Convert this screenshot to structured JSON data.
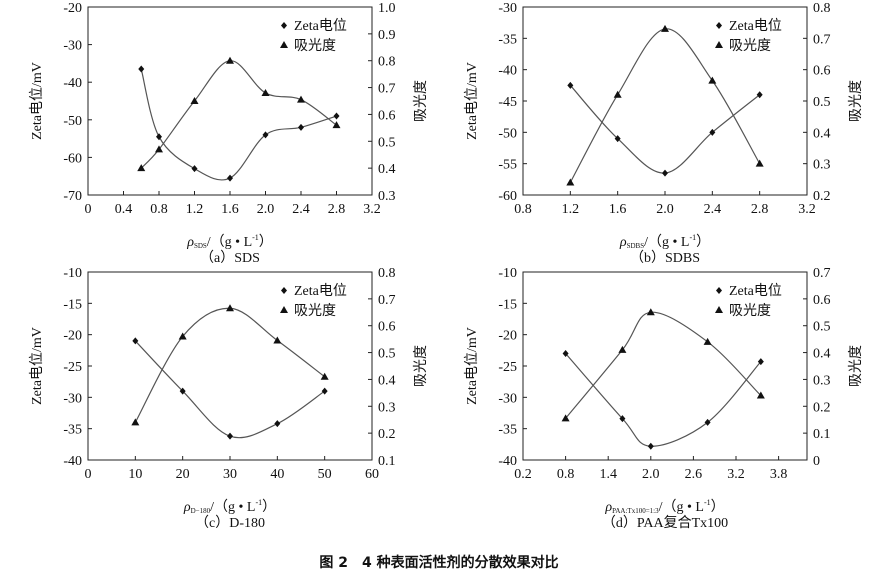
{
  "figure_title": "图 2　4 种表面活性剂的分散效果对比",
  "chart_data": [
    {
      "type": "line",
      "caption": "（a）SDS",
      "xlabel": {
        "symbol": "ρ",
        "subscript": "SDS",
        "unit": "/（g • L",
        "unit_sup": "-1",
        "unit_close": "）"
      },
      "ylabel_left": "Zeta电位/mV",
      "ylabel_right": "吸光度",
      "xlim": [
        0,
        3.2
      ],
      "xticks": [
        "0",
        "0.4",
        "0.8",
        "1.2",
        "1.6",
        "2.0",
        "2.4",
        "2.8",
        "3.2"
      ],
      "ylim_left": [
        -70,
        -20
      ],
      "yticks_left": [
        "-70",
        "-60",
        "-50",
        "-40",
        "-30",
        "-20"
      ],
      "ylim_right": [
        0.3,
        1.0
      ],
      "yticks_right": [
        "0.3",
        "0.4",
        "0.5",
        "0.6",
        "0.7",
        "0.8",
        "0.9",
        "1.0"
      ],
      "legend": "top-right",
      "series": [
        {
          "name": "Zeta电位",
          "axis": "left",
          "marker": "diamond",
          "x": [
            0.6,
            0.8,
            1.2,
            1.6,
            2.0,
            2.4,
            2.8
          ],
          "y": [
            -36.5,
            -54.5,
            -63,
            -65.5,
            -54,
            -52,
            -49
          ]
        },
        {
          "name": "吸光度",
          "axis": "right",
          "marker": "triangle",
          "x": [
            0.6,
            0.8,
            1.2,
            1.6,
            2.0,
            2.4,
            2.8
          ],
          "y": [
            0.4,
            0.47,
            0.65,
            0.8,
            0.68,
            0.655,
            0.56
          ]
        }
      ]
    },
    {
      "type": "line",
      "caption": "（b）SDBS",
      "xlabel": {
        "symbol": "ρ",
        "subscript": "SDBS",
        "unit": "/（g • L",
        "unit_sup": "-1",
        "unit_close": "）"
      },
      "ylabel_left": "Zeta电位/mV",
      "ylabel_right": "吸光度",
      "xlim": [
        0.8,
        3.2
      ],
      "xticks": [
        "0.8",
        "1.2",
        "1.6",
        "2.0",
        "2.4",
        "2.8",
        "3.2"
      ],
      "ylim_left": [
        -60,
        -30
      ],
      "yticks_left": [
        "-60",
        "-55",
        "-50",
        "-45",
        "-40",
        "-35",
        "-30"
      ],
      "ylim_right": [
        0.2,
        0.8
      ],
      "yticks_right": [
        "0.2",
        "0.3",
        "0.4",
        "0.5",
        "0.6",
        "0.7",
        "0.8"
      ],
      "legend": "top-right",
      "series": [
        {
          "name": "Zeta电位",
          "axis": "left",
          "marker": "diamond",
          "x": [
            1.2,
            1.6,
            2.0,
            2.4,
            2.8
          ],
          "y": [
            -42.5,
            -51,
            -56.5,
            -50,
            -44
          ]
        },
        {
          "name": "吸光度",
          "axis": "right",
          "marker": "triangle",
          "x": [
            1.2,
            1.6,
            2.0,
            2.4,
            2.8
          ],
          "y": [
            0.24,
            0.52,
            0.73,
            0.565,
            0.3
          ]
        }
      ]
    },
    {
      "type": "line",
      "caption": "（c）D-180",
      "xlabel": {
        "symbol": "ρ",
        "subscript": "D−180",
        "unit": "/（g • L",
        "unit_sup": "-1",
        "unit_close": "）"
      },
      "ylabel_left": "Zeta电位/mV",
      "ylabel_right": "吸光度",
      "xlim": [
        0,
        60
      ],
      "xticks": [
        "0",
        "10",
        "20",
        "30",
        "40",
        "50",
        "60"
      ],
      "ylim_left": [
        -40,
        -10
      ],
      "yticks_left": [
        "-40",
        "-35",
        "-30",
        "-25",
        "-20",
        "-15",
        "-10"
      ],
      "ylim_right": [
        0.1,
        0.8
      ],
      "yticks_right": [
        "0.1",
        "0.2",
        "0.3",
        "0.4",
        "0.5",
        "0.6",
        "0.7",
        "0.8"
      ],
      "legend": "top-right",
      "series": [
        {
          "name": "Zeta电位",
          "axis": "left",
          "marker": "diamond",
          "x": [
            10,
            20,
            30,
            40,
            50
          ],
          "y": [
            -21,
            -29,
            -36.2,
            -34.2,
            -29
          ]
        },
        {
          "name": "吸光度",
          "axis": "right",
          "marker": "triangle",
          "x": [
            10,
            20,
            30,
            40,
            50
          ],
          "y": [
            0.24,
            0.56,
            0.665,
            0.545,
            0.41
          ]
        }
      ]
    },
    {
      "type": "line",
      "caption": "（d）PAA复合Tx100",
      "xlabel": {
        "symbol": "ρ",
        "subscript": "PAA:Tx100=1:3",
        "unit": "/（g • L",
        "unit_sup": "-1",
        "unit_close": "）"
      },
      "ylabel_left": "Zeta电位/mV",
      "ylabel_right": "吸光度",
      "xlim": [
        0.2,
        4.2
      ],
      "xticks": [
        "0.2",
        "0.8",
        "1.4",
        "2.0",
        "2.6",
        "3.2",
        "3.8"
      ],
      "ylim_left": [
        -40,
        -10
      ],
      "yticks_left": [
        "-40",
        "-35",
        "-30",
        "-25",
        "-20",
        "-15",
        "-10"
      ],
      "ylim_right": [
        0,
        0.7
      ],
      "yticks_right": [
        "0",
        "0.1",
        "0.2",
        "0.3",
        "0.4",
        "0.5",
        "0.6",
        "0.7"
      ],
      "legend": "top-right",
      "series": [
        {
          "name": "Zeta电位",
          "axis": "left",
          "marker": "diamond",
          "x": [
            0.8,
            1.6,
            2.0,
            2.8,
            3.55
          ],
          "y": [
            -23,
            -33.4,
            -37.8,
            -34,
            -24.3
          ]
        },
        {
          "name": "吸光度",
          "axis": "right",
          "marker": "triangle",
          "x": [
            0.8,
            1.6,
            2.0,
            2.8,
            3.55
          ],
          "y": [
            0.155,
            0.41,
            0.55,
            0.44,
            0.24
          ]
        }
      ]
    }
  ]
}
